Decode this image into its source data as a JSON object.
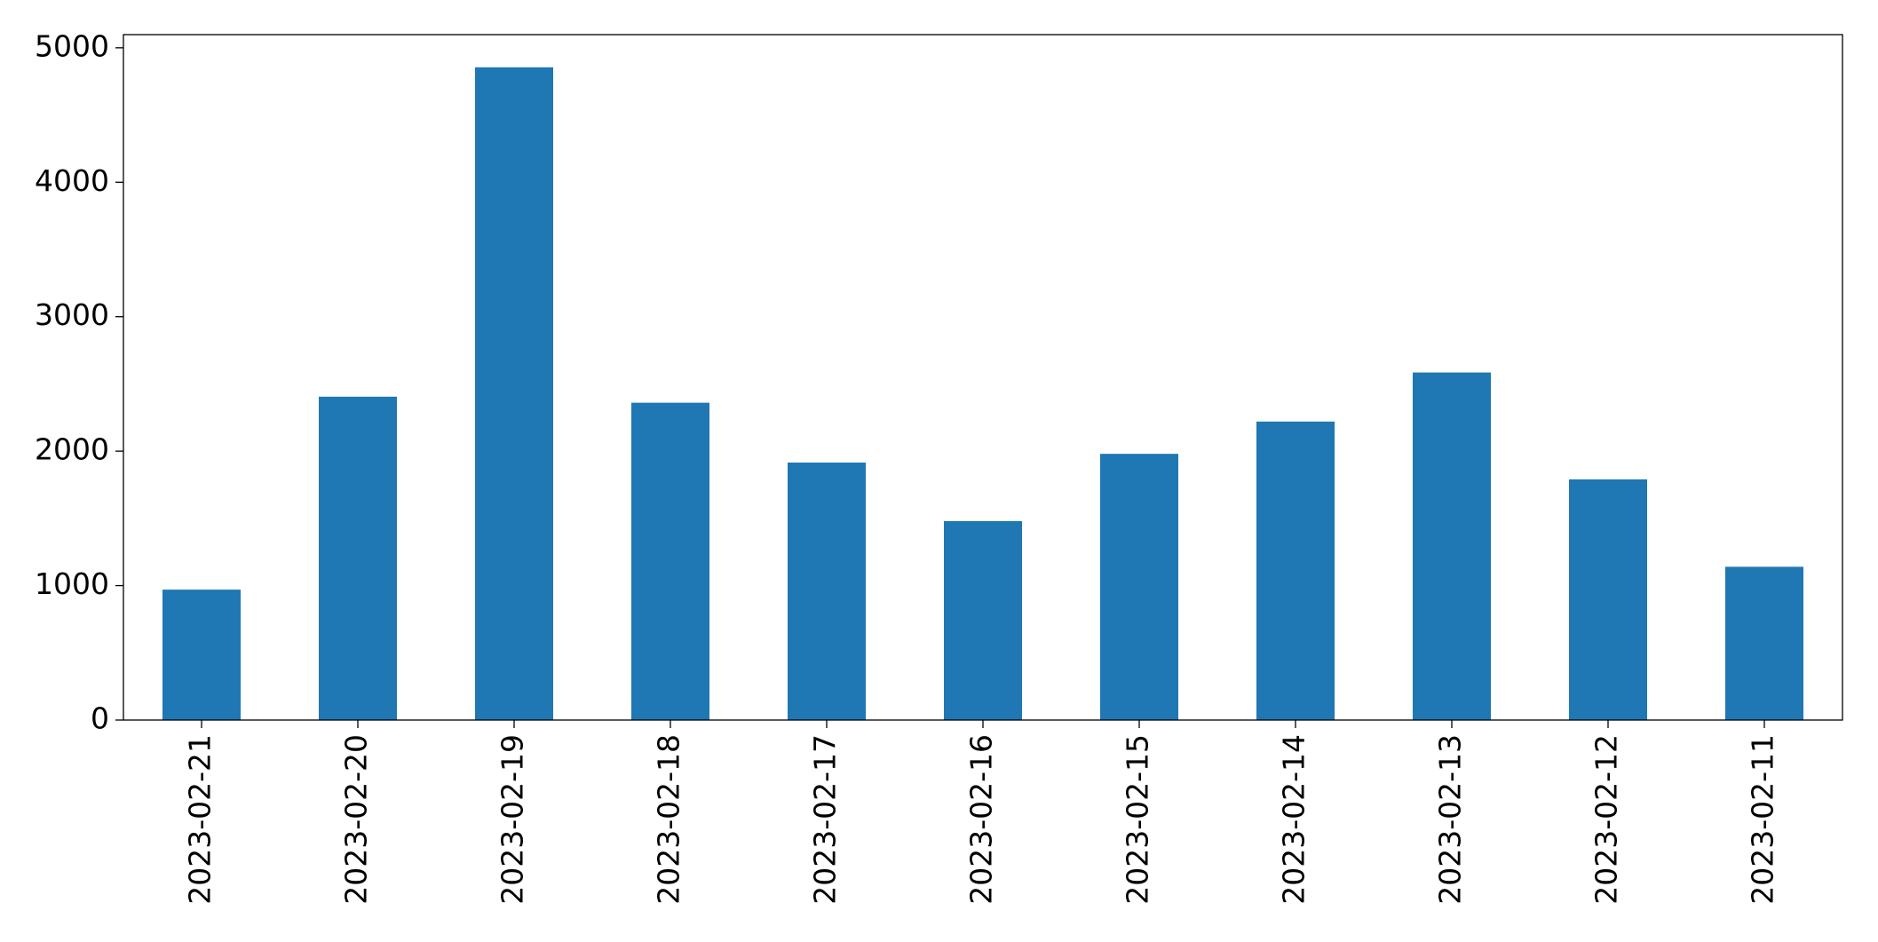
{
  "chart_data": {
    "type": "bar",
    "categories": [
      "2023-02-21",
      "2023-02-20",
      "2023-02-19",
      "2023-02-18",
      "2023-02-17",
      "2023-02-16",
      "2023-02-15",
      "2023-02-14",
      "2023-02-13",
      "2023-02-12",
      "2023-02-11"
    ],
    "values": [
      970,
      2405,
      4855,
      2360,
      1915,
      1480,
      1980,
      2220,
      2585,
      1790,
      1140
    ],
    "color": "#1f77b4",
    "ylim": [
      0,
      5098
    ],
    "yticks": [
      0,
      1000,
      2000,
      3000,
      4000,
      5000
    ],
    "grid": false
  }
}
